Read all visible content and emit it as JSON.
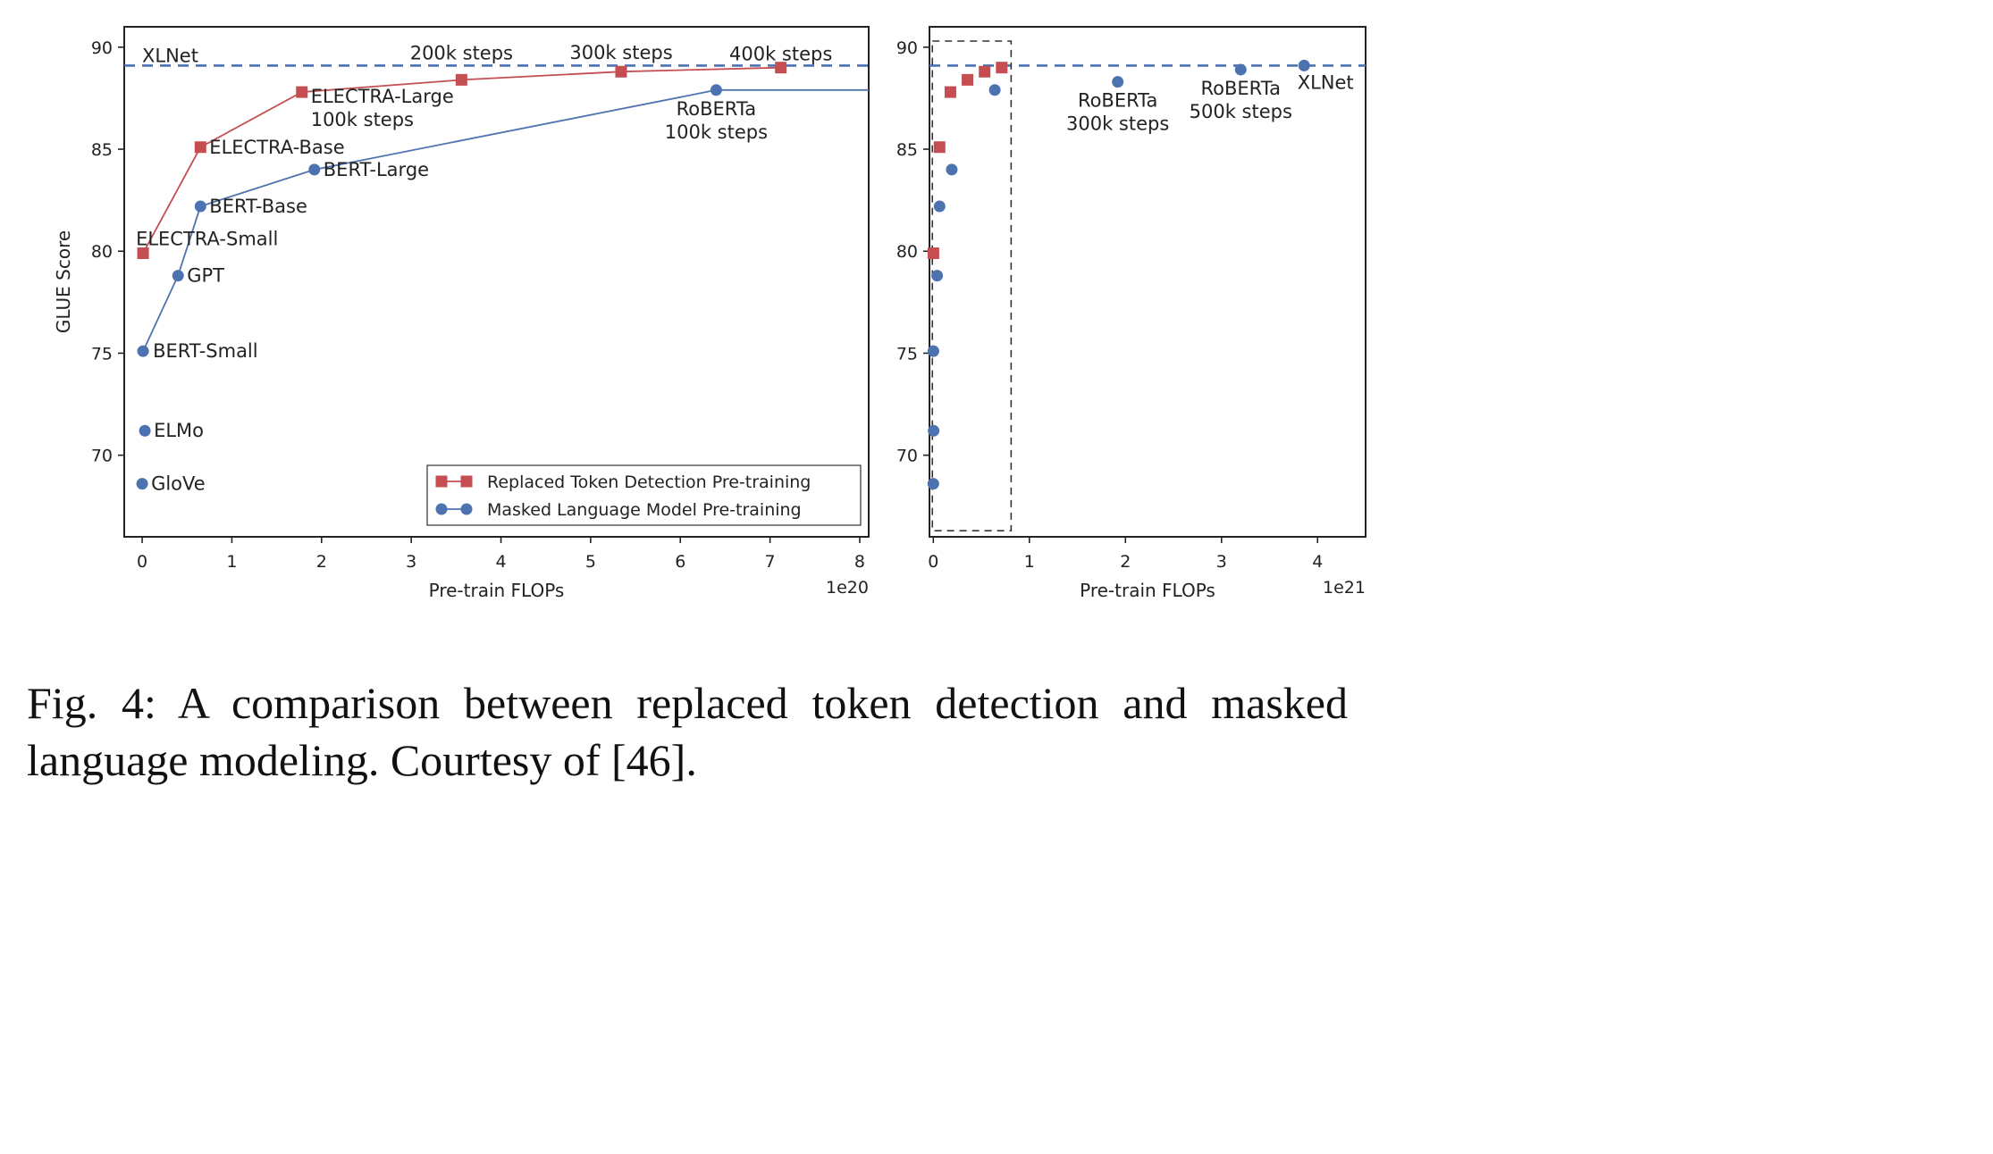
{
  "chart_data": [
    {
      "type": "line",
      "xlabel": "Pre-train FLOPs",
      "ylabel": "GLUE Score",
      "x_scale_label": "1e20",
      "xlim": [
        -0.2,
        8.1
      ],
      "ylim": [
        66,
        91
      ],
      "x_ticks": [
        0,
        1,
        2,
        3,
        4,
        5,
        6,
        7,
        8
      ],
      "y_ticks": [
        70,
        75,
        80,
        85,
        90
      ],
      "x_tick_labels": [
        "0",
        "1",
        "2",
        "3",
        "4",
        "5",
        "6",
        "7",
        "8"
      ],
      "y_tick_labels": [
        "70",
        "75",
        "80",
        "85",
        "90"
      ],
      "grid": false,
      "legend_position": "lower-right",
      "reference_line": {
        "label": "XLNet",
        "y": 89.1,
        "style": "dashed",
        "color": "#4c72b0"
      },
      "series": [
        {
          "name": "Replaced Token Detection Pre-training",
          "color": "#c44e52",
          "marker": "square",
          "points": [
            {
              "x": 0.01,
              "y": 79.9,
              "label": "ELECTRA-Small"
            },
            {
              "x": 0.65,
              "y": 85.1,
              "label": "ELECTRA-Base"
            },
            {
              "x": 1.78,
              "y": 87.8,
              "label": "ELECTRA-Large\n100k steps"
            },
            {
              "x": 3.56,
              "y": 88.4,
              "label": "200k steps"
            },
            {
              "x": 5.34,
              "y": 88.8,
              "label": "300k steps"
            },
            {
              "x": 7.12,
              "y": 89.0,
              "label": "400k steps"
            }
          ]
        },
        {
          "name": "Masked Language Model Pre-training",
          "color": "#4c72b0",
          "marker": "circle",
          "points": [
            {
              "x": 0.01,
              "y": 75.1,
              "label": "BERT-Small"
            },
            {
              "x": 0.4,
              "y": 78.8,
              "label": "GPT"
            },
            {
              "x": 0.65,
              "y": 82.2,
              "label": "BERT-Base"
            },
            {
              "x": 1.92,
              "y": 84.0,
              "label": "BERT-Large"
            },
            {
              "x": 6.4,
              "y": 87.9,
              "label": "RoBERTa\n100k steps"
            },
            {
              "x": 8.1,
              "y": 87.9,
              "label": ""
            }
          ]
        },
        {
          "name": "",
          "color": "#4c72b0",
          "marker": "circle",
          "line": false,
          "points": [
            {
              "x": 0.03,
              "y": 71.2,
              "label": "ELMo"
            },
            {
              "x": 0.0,
              "y": 68.6,
              "label": "GloVe"
            }
          ]
        }
      ]
    },
    {
      "type": "scatter",
      "xlabel": "Pre-train FLOPs",
      "ylabel": "",
      "x_scale_label": "1e21",
      "xlim": [
        -0.04,
        4.5
      ],
      "ylim": [
        66,
        91
      ],
      "x_ticks": [
        0,
        1,
        2,
        3,
        4
      ],
      "y_ticks": [
        70,
        75,
        80,
        85,
        90
      ],
      "x_tick_labels": [
        "0",
        "1",
        "2",
        "3",
        "4"
      ],
      "y_tick_labels": [
        "70",
        "75",
        "80",
        "85",
        "90"
      ],
      "grid": false,
      "reference_line": {
        "y": 89.1,
        "style": "dashed",
        "color": "#4c72b0"
      },
      "zoom_box": {
        "x": [
          -0.01,
          0.81
        ],
        "y": [
          66.3,
          90.3
        ]
      },
      "series": [
        {
          "name": "Replaced Token Detection Pre-training",
          "color": "#c44e52",
          "marker": "square",
          "points": [
            {
              "x": 0.001,
              "y": 79.9
            },
            {
              "x": 0.065,
              "y": 85.1
            },
            {
              "x": 0.178,
              "y": 87.8
            },
            {
              "x": 0.356,
              "y": 88.4
            },
            {
              "x": 0.534,
              "y": 88.8
            },
            {
              "x": 0.712,
              "y": 89.0
            }
          ]
        },
        {
          "name": "Masked Language Model Pre-training",
          "color": "#4c72b0",
          "marker": "circle",
          "points": [
            {
              "x": 0.0,
              "y": 68.6
            },
            {
              "x": 0.003,
              "y": 71.2
            },
            {
              "x": 0.001,
              "y": 75.1
            },
            {
              "x": 0.04,
              "y": 78.8
            },
            {
              "x": 0.065,
              "y": 82.2
            },
            {
              "x": 0.192,
              "y": 84.0
            },
            {
              "x": 0.64,
              "y": 87.9
            },
            {
              "x": 1.92,
              "y": 88.3,
              "label": "RoBERTa\n300k steps"
            },
            {
              "x": 3.2,
              "y": 88.9,
              "label": "RoBERTa\n500k steps"
            },
            {
              "x": 3.86,
              "y": 89.1,
              "label": "XLNet"
            }
          ]
        }
      ]
    }
  ],
  "caption": "Fig. 4: A comparison between replaced token detection and masked language modeling. Courtesy of [46]."
}
